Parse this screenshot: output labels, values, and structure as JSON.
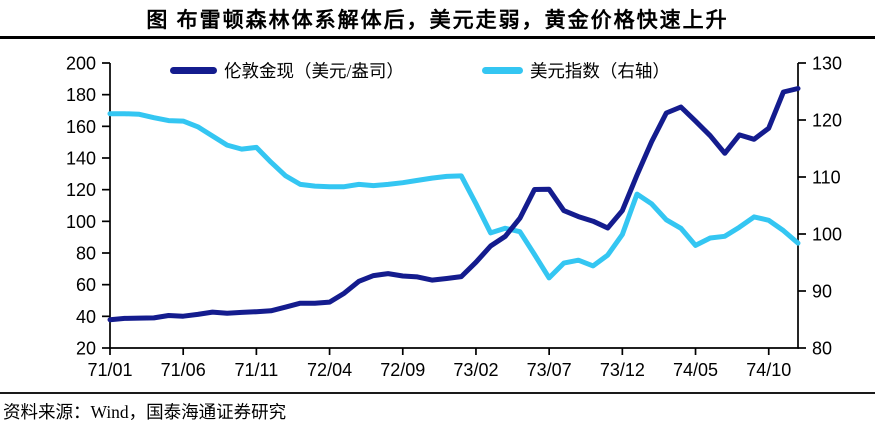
{
  "figure": {
    "title": "图  布雷顿森林体系解体后，美元走弱，黄金价格快速上升",
    "source": "资料来源：Wind，国泰海通证券研究"
  },
  "chart_data": {
    "type": "line",
    "title": "图  布雷顿森林体系解体后，美元走弱，黄金价格快速上升",
    "x_tick_labels": [
      "71/01",
      "71/06",
      "71/11",
      "72/04",
      "72/09",
      "73/02",
      "73/07",
      "73/12",
      "74/05",
      "74/10"
    ],
    "x_tick_indices": [
      0,
      5,
      10,
      15,
      20,
      25,
      30,
      35,
      40,
      45
    ],
    "x_axis_note": "monthly points, 71/01 through 74/12",
    "left_axis": {
      "min": 20,
      "max": 200,
      "ticks": [
        20,
        40,
        60,
        80,
        100,
        120,
        140,
        160,
        180,
        200
      ]
    },
    "right_axis": {
      "min": 80,
      "max": 130,
      "ticks": [
        80,
        90,
        100,
        110,
        120,
        130
      ]
    },
    "grid": false,
    "legend_position": "top-center",
    "series": [
      {
        "name": "伦敦金现（美元/盎司）",
        "axis": "left",
        "color": "#141c8e",
        "values": [
          37.9,
          38.7,
          38.9,
          39.0,
          40.5,
          40.1,
          41.2,
          42.7,
          42.0,
          42.5,
          42.9,
          43.5,
          45.8,
          48.3,
          48.3,
          49.0,
          54.6,
          62.1,
          65.7,
          67.0,
          65.5,
          64.9,
          62.9,
          63.9,
          65.1,
          74.2,
          84.4,
          90.5,
          102.0,
          120.1,
          120.2,
          106.8,
          103.0,
          100.1,
          95.8,
          106.7,
          129.2,
          150.2,
          168.4,
          172.2,
          163.3,
          154.1,
          143.0,
          154.6,
          151.8,
          158.8,
          181.7,
          183.9
        ]
      },
      {
        "name": "美元指数（右轴）",
        "axis": "right",
        "color": "#34c6f2",
        "values": [
          121.1,
          121.1,
          121.0,
          120.4,
          119.9,
          119.8,
          118.8,
          117.2,
          115.6,
          114.9,
          115.2,
          112.6,
          110.2,
          108.7,
          108.4,
          108.3,
          108.3,
          108.7,
          108.5,
          108.7,
          109.0,
          109.4,
          109.8,
          110.1,
          110.2,
          105.3,
          100.2,
          101.0,
          100.4,
          96.4,
          92.3,
          94.9,
          95.4,
          94.4,
          96.3,
          99.9,
          107.0,
          105.3,
          102.5,
          101.0,
          98.0,
          99.3,
          99.6,
          101.2,
          103.0,
          102.4,
          100.6,
          98.4
        ]
      }
    ]
  }
}
